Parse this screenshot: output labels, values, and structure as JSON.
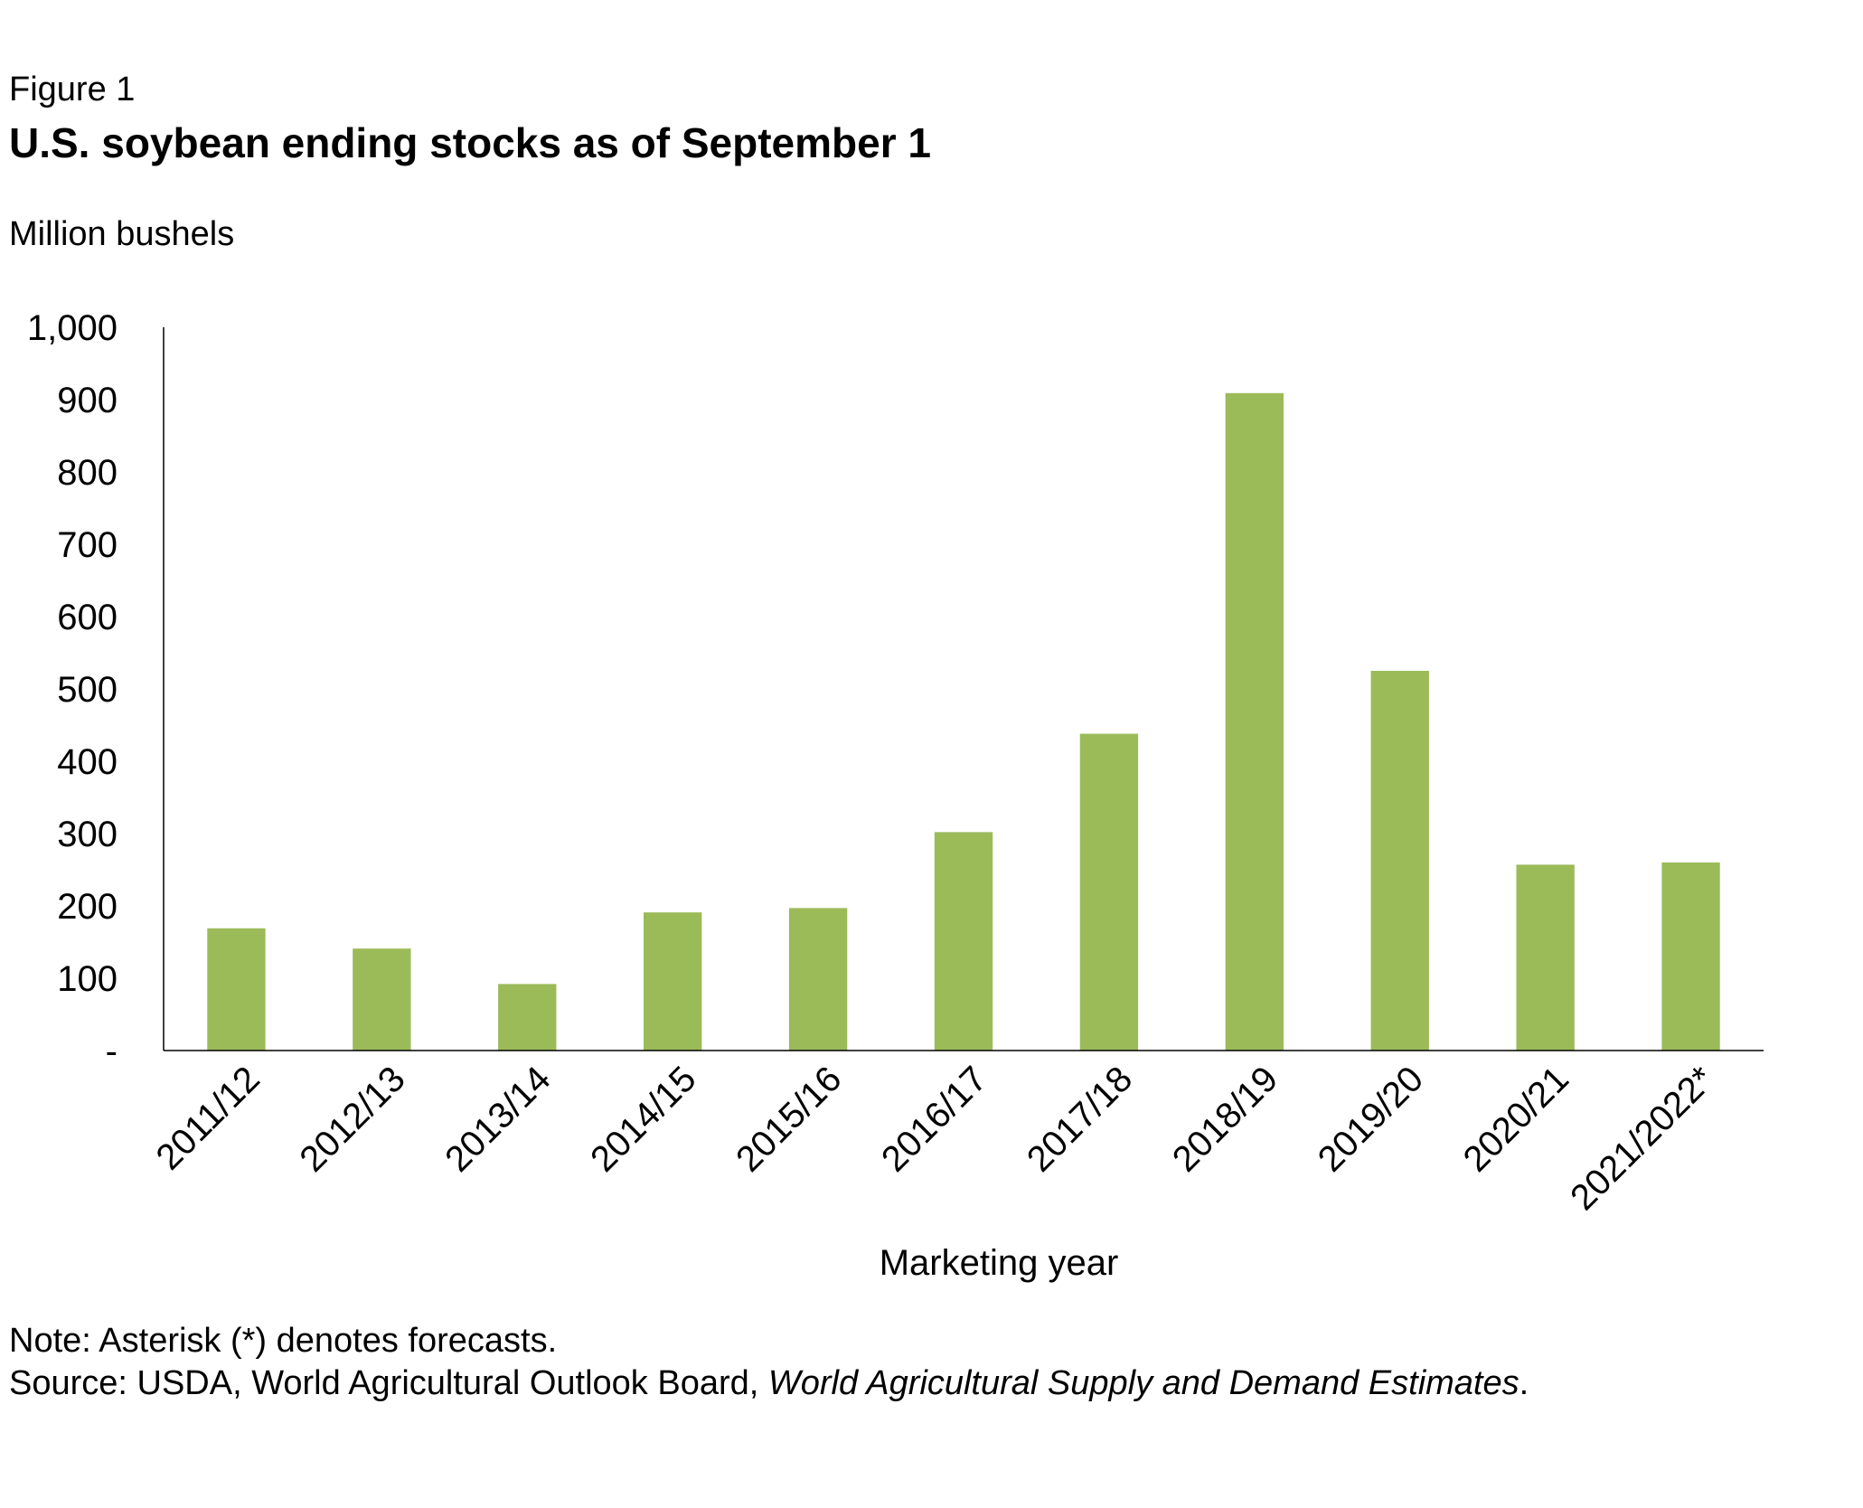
{
  "figure_label": "Figure 1",
  "title": "U.S. soybean ending stocks as of September 1",
  "y_unit_label": "Million bushels",
  "x_axis_label": "Marketing year",
  "note": "Note: Asterisk (*) denotes forecasts.",
  "source": {
    "prefix": "Source: USDA, World Agricultural Outlook Board, ",
    "publication": "World Agricultural Supply and Demand Estimates",
    "suffix": "."
  },
  "chart_data": {
    "type": "bar",
    "categories": [
      "2011/12",
      "2012/13",
      "2013/14",
      "2014/15",
      "2015/16",
      "2016/17",
      "2017/18",
      "2018/19",
      "2019/20",
      "2020/21",
      "2021/2022*"
    ],
    "series": [
      {
        "values": [
          169,
          141,
          92,
          191,
          197,
          302,
          438,
          909,
          525,
          257,
          260
        ]
      }
    ],
    "ylim": [
      0,
      1000
    ],
    "yticks": [
      0,
      100,
      200,
      300,
      400,
      500,
      600,
      700,
      800,
      900,
      1000
    ],
    "ytick_labels": [
      "-",
      "100",
      "200",
      "300",
      "400",
      "500",
      "600",
      "700",
      "800",
      "900",
      "1,000"
    ],
    "grid": false,
    "bar_color": "#9BBB59"
  }
}
